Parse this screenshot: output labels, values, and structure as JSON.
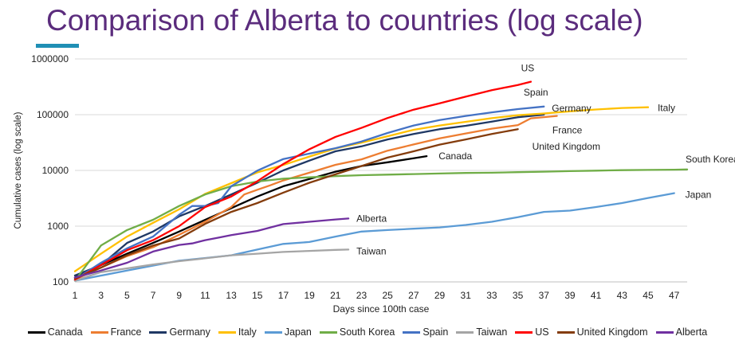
{
  "slide": {
    "title": "Comparison of Alberta to countries (log scale)"
  },
  "chart_data": {
    "type": "line",
    "title": "",
    "xlabel": "Days since 100th case",
    "ylabel": "Cumulative cases (log scale)",
    "yscale": "log",
    "xlim": [
      1,
      48
    ],
    "ylim": [
      100,
      1000000
    ],
    "xticks": [
      "1",
      "3",
      "5",
      "7",
      "9",
      "11",
      "13",
      "15",
      "17",
      "19",
      "21",
      "23",
      "25",
      "27",
      "29",
      "31",
      "33",
      "35",
      "37",
      "39",
      "41",
      "43",
      "45",
      "47"
    ],
    "yticks": [
      "100",
      "1000",
      "10000",
      "100000",
      "1000000"
    ],
    "grid": true,
    "legend_position": "bottom",
    "series": [
      {
        "name": "Canada",
        "color": "#000000",
        "end_label": "Canada",
        "x": [
          1,
          3,
          5,
          7,
          9,
          11,
          13,
          15,
          17,
          19,
          21,
          23,
          25,
          27,
          28
        ],
        "y": [
          120,
          200,
          320,
          500,
          800,
          1300,
          2100,
          3400,
          5200,
          7000,
          9500,
          12000,
          14000,
          16500,
          18000
        ]
      },
      {
        "name": "France",
        "color": "#ed7d31",
        "end_label": "France",
        "x": [
          1,
          3,
          5,
          7,
          9,
          11,
          13,
          14,
          15,
          16,
          17,
          19,
          21,
          23,
          25,
          27,
          29,
          31,
          33,
          35,
          36,
          38
        ],
        "y": [
          110,
          180,
          290,
          420,
          700,
          1200,
          2200,
          3700,
          4500,
          5400,
          6600,
          9100,
          12600,
          15800,
          22600,
          29200,
          37500,
          46000,
          56000,
          65000,
          86000,
          95000
        ]
      },
      {
        "name": "Germany",
        "color": "#1f3864",
        "end_label": "Germany",
        "x": [
          1,
          3,
          5,
          7,
          9,
          11,
          13,
          15,
          17,
          19,
          21,
          23,
          25,
          27,
          29,
          31,
          33,
          35,
          37
        ],
        "y": [
          130,
          200,
          500,
          800,
          1500,
          2300,
          3700,
          6000,
          10000,
          15000,
          22000,
          27000,
          36000,
          45000,
          55000,
          63000,
          75000,
          90000,
          100000
        ]
      },
      {
        "name": "Italy",
        "color": "#ffc000",
        "end_label": "Italy",
        "x": [
          1,
          3,
          5,
          7,
          9,
          11,
          13,
          15,
          17,
          19,
          21,
          23,
          25,
          27,
          29,
          31,
          33,
          35,
          37,
          39,
          41,
          43,
          45
        ],
        "y": [
          155,
          320,
          650,
          1150,
          2000,
          3800,
          5900,
          9200,
          12500,
          17700,
          24700,
          31500,
          41000,
          53600,
          63900,
          74400,
          86500,
          97700,
          105000,
          115000,
          124000,
          132000,
          136000
        ]
      },
      {
        "name": "Japan",
        "color": "#5b9bd5",
        "end_label": "Japan",
        "x": [
          1,
          5,
          9,
          13,
          15,
          17,
          19,
          21,
          23,
          25,
          27,
          29,
          31,
          33,
          35,
          37,
          39,
          41,
          43,
          45,
          47
        ],
        "y": [
          105,
          160,
          240,
          300,
          380,
          480,
          520,
          650,
          800,
          850,
          900,
          950,
          1050,
          1200,
          1450,
          1800,
          1900,
          2200,
          2600,
          3200,
          3900
        ]
      },
      {
        "name": "South Korea",
        "color": "#70ad47",
        "end_label": "South Korea",
        "x": [
          1,
          3,
          5,
          7,
          9,
          11,
          13,
          15,
          17,
          19,
          21,
          23,
          25,
          27,
          29,
          31,
          33,
          35,
          37,
          39,
          41,
          43,
          45,
          47,
          48
        ],
        "y": [
          105,
          450,
          850,
          1300,
          2300,
          3700,
          5200,
          6300,
          7100,
          7500,
          7900,
          8200,
          8400,
          8600,
          8800,
          9000,
          9100,
          9300,
          9500,
          9700,
          9900,
          10100,
          10200,
          10300,
          10400
        ]
      },
      {
        "name": "Spain",
        "color": "#4472c4",
        "end_label": "Spain",
        "x": [
          1,
          3,
          5,
          7,
          9,
          10,
          11,
          12,
          13,
          15,
          17,
          19,
          21,
          23,
          25,
          27,
          29,
          31,
          33,
          35,
          37
        ],
        "y": [
          110,
          220,
          400,
          650,
          1600,
          2300,
          2300,
          2600,
          5200,
          9900,
          16000,
          20000,
          25000,
          33000,
          47000,
          64000,
          80000,
          95000,
          110000,
          126000,
          140000
        ]
      },
      {
        "name": "Taiwan",
        "color": "#a5a5a5",
        "end_label": "Taiwan",
        "x": [
          1,
          3,
          5,
          7,
          9,
          11,
          13,
          15,
          17,
          19,
          21,
          22
        ],
        "y": [
          105,
          150,
          175,
          205,
          235,
          265,
          300,
          320,
          345,
          360,
          375,
          380
        ]
      },
      {
        "name": "US",
        "color": "#ff0000",
        "end_label": "US",
        "x": [
          1,
          3,
          5,
          7,
          9,
          11,
          13,
          15,
          17,
          19,
          21,
          23,
          25,
          27,
          29,
          31,
          33,
          35,
          36
        ],
        "y": [
          110,
          200,
          370,
          560,
          1000,
          2200,
          3400,
          6400,
          13000,
          24000,
          40000,
          58000,
          87000,
          123000,
          160000,
          210000,
          275000,
          340000,
          390000
        ]
      },
      {
        "name": "United Kingdom",
        "color": "#843c0c",
        "end_label": "United Kingdom",
        "x": [
          1,
          3,
          5,
          7,
          9,
          11,
          13,
          15,
          17,
          19,
          21,
          23,
          25,
          27,
          29,
          31,
          33,
          35
        ],
        "y": [
          115,
          180,
          300,
          450,
          600,
          1100,
          1800,
          2600,
          4000,
          6000,
          8500,
          12000,
          17000,
          22000,
          29000,
          36000,
          45000,
          55000
        ]
      },
      {
        "name": "Alberta",
        "color": "#7030a0",
        "end_label": "Alberta",
        "x": [
          1,
          3,
          5,
          7,
          9,
          10,
          11,
          12,
          13,
          15,
          17,
          19,
          21,
          22
        ],
        "y": [
          120,
          160,
          220,
          350,
          460,
          490,
          560,
          620,
          690,
          820,
          1090,
          1200,
          1320,
          1373
        ]
      }
    ]
  }
}
